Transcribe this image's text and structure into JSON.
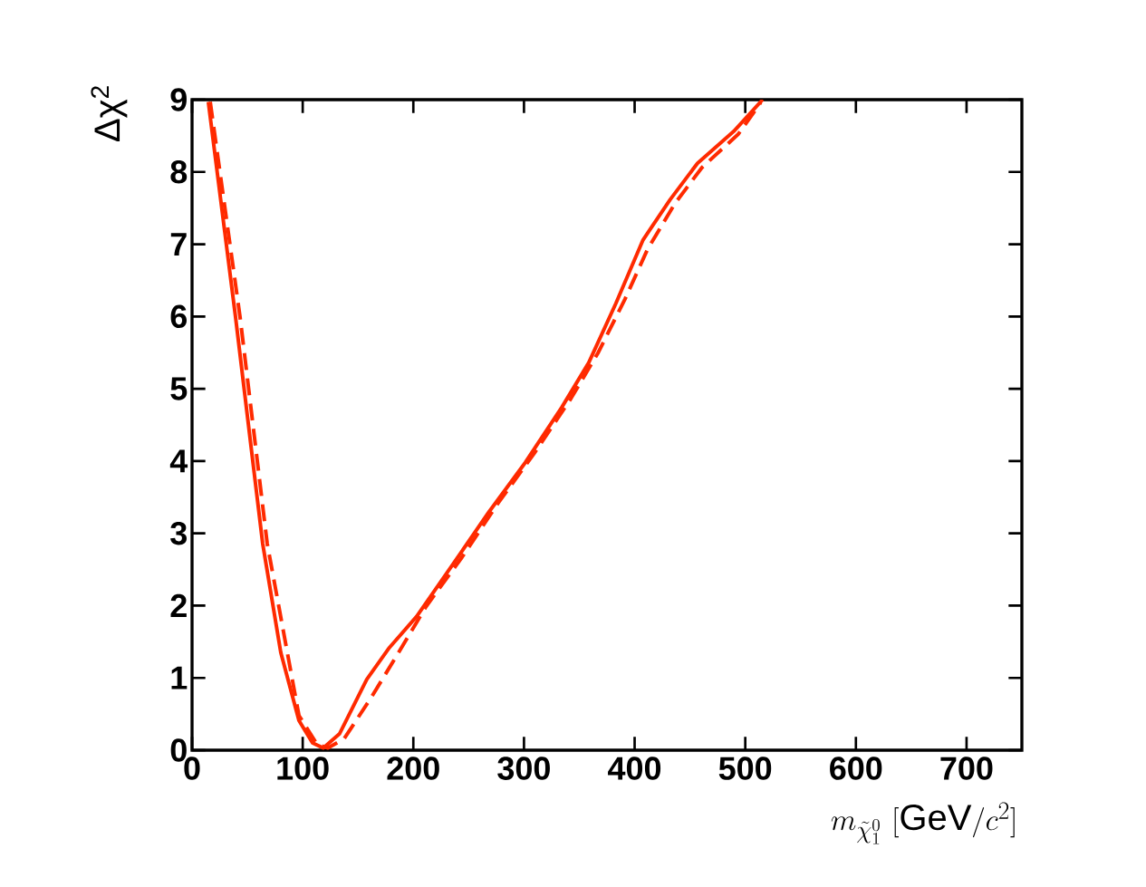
{
  "chart_data": {
    "type": "line",
    "xlabel": "m_{\\tilde{\\chi}^{0}_{1}}\\ [\\mathrm{GeV}/c^{2}]",
    "ylabel": "Δχ$^{2}$",
    "xlim": [
      0,
      750
    ],
    "ylim": [
      0,
      9
    ],
    "xticks": [
      0,
      100,
      200,
      300,
      400,
      500,
      600,
      700
    ],
    "yticks": [
      0,
      1,
      2,
      3,
      4,
      5,
      6,
      7,
      8,
      9
    ],
    "series": [
      {
        "color": "#ff2a00",
        "line_style": "solid",
        "x": [
          14.7,
          39.3,
          63.8,
          80.2,
          96.6,
          108.9,
          118.7,
          133.4,
          157.9,
          178.4,
          203,
          235.7,
          268.5,
          301.2,
          334,
          358.5,
          383,
          407.6,
          432.2,
          456.8,
          489.5,
          515.7
        ],
        "values": [
          8.97,
          5.99,
          2.86,
          1.35,
          0.41,
          0.1,
          0.03,
          0.23,
          0.98,
          1.42,
          1.85,
          2.57,
          3.3,
          3.98,
          4.74,
          5.36,
          6.18,
          7.06,
          7.62,
          8.12,
          8.56,
          9.0
        ]
      },
      {
        "color": "#ff2a00",
        "line_style": "dashed",
        "x": [
          16.4,
          43.4,
          67.9,
          96.6,
          113,
          122.8,
          137.5,
          162,
          186.6,
          211.2,
          244,
          276.7,
          309.4,
          342.2,
          366.7,
          391.3,
          411.7,
          436.3,
          460.8,
          493.5,
          514
        ],
        "values": [
          8.97,
          5.99,
          2.86,
          0.48,
          0.08,
          0.03,
          0.16,
          0.73,
          1.35,
          1.98,
          2.67,
          3.42,
          4.11,
          4.86,
          5.49,
          6.24,
          6.93,
          7.56,
          8.06,
          8.52,
          8.96
        ]
      }
    ]
  }
}
